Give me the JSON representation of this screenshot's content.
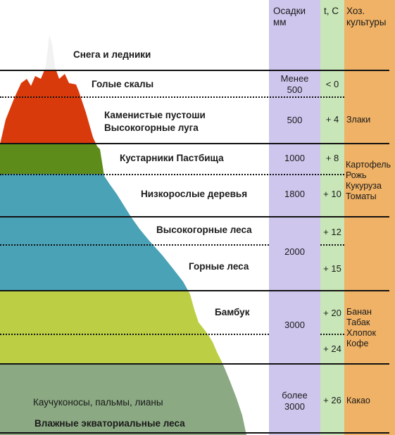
{
  "headers": {
    "precip": "Осадки\nмм",
    "temp": "t, C",
    "crops": "Хоз.\nкультуры"
  },
  "zones": {
    "snow": "Снега и ледники",
    "rocks": "Голые скалы",
    "wasteland": "Каменистые пустоши\nВысокогорные луга",
    "shrubs": "Кустарники Пастбища",
    "low_trees": "Низкорослые деревья",
    "high_forest": "Высокогорные леса",
    "mountain_forest": "Горные леса",
    "bamboo": "Бамбук",
    "rubber": "Каучуконосы, пальмы, лианы",
    "equatorial": "Влажные экваториальные леса"
  },
  "precipitation": {
    "rocks": "Менее\n500",
    "wasteland": "500",
    "shrubs": "1000",
    "low_trees": "1800",
    "forests": "2000",
    "bamboo": "3000",
    "equatorial": "более\n3000"
  },
  "temperature": {
    "rocks": "< 0",
    "wasteland": "+ 4",
    "shrubs": "+ 8",
    "low_trees": "+ 10",
    "high_forest": "+ 12",
    "mountain_forest": "+ 15",
    "bamboo_upper": "+ 20",
    "bamboo_lower": "+ 24",
    "equatorial": "+ 26"
  },
  "crops": {
    "wasteland": "Злаки",
    "temperate": "Картофель\nРожь\nКукуруза\nТоматы",
    "tropical": "Банан\nТабак\nХлопок\nКофе",
    "equatorial": "Какао"
  },
  "colors": {
    "snow": "#f2f2f2",
    "rocks": "#d93a0c",
    "shrubs": "#5e8c1a",
    "forest": "#4aa2b6",
    "bamboo": "#bccf44",
    "equatorial": "#8ba982",
    "precip_column": "#cfc6ee",
    "temp_column": "#c8e6b7",
    "crops_column": "#f0b266"
  }
}
